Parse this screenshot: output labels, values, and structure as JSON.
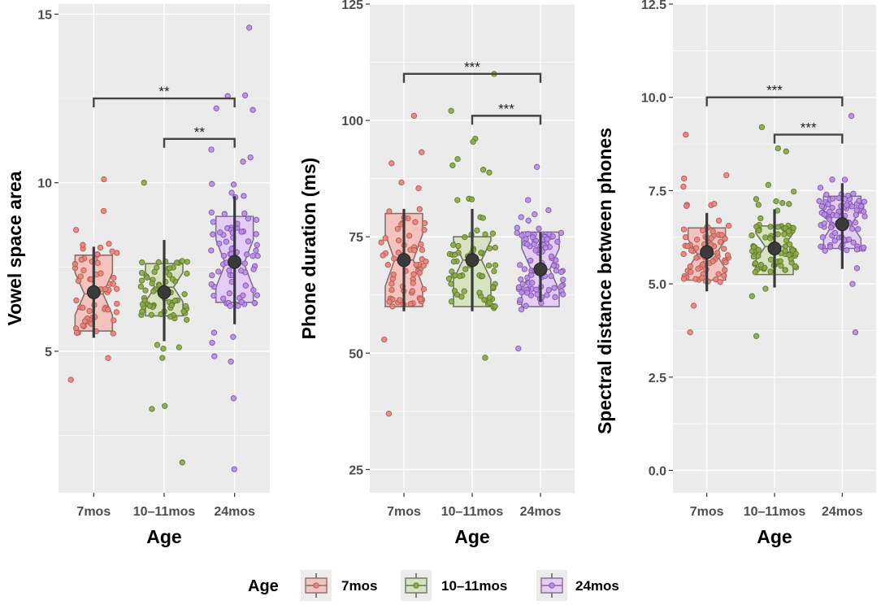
{
  "chart_data": [
    {
      "type": "box",
      "ylabel": "Vowel space area",
      "xlabel": "Age",
      "ylim": [
        0.8,
        15.3
      ],
      "yticks": [
        5,
        10,
        15
      ],
      "yticklabels": [
        "5",
        "10",
        "15"
      ],
      "categories": [
        "7mos",
        "10–11mos",
        "24mos"
      ],
      "boxes": [
        {
          "q1": 5.6,
          "median": 6.7,
          "q3": 7.85,
          "mean": 6.75,
          "err_low": 5.4,
          "err_high": 8.1,
          "min": 4.15,
          "max": 10.1,
          "n": 60
        },
        {
          "q1": 6.05,
          "median": 6.9,
          "q3": 7.6,
          "mean": 6.75,
          "err_low": 5.3,
          "err_high": 8.3,
          "min": 1.7,
          "max": 10.0,
          "n": 70
        },
        {
          "q1": 6.45,
          "median": 7.6,
          "q3": 9.0,
          "mean": 7.65,
          "err_low": 5.8,
          "err_high": 9.6,
          "min": 1.5,
          "max": 14.6,
          "n": 90
        }
      ],
      "significance": [
        {
          "from": "7mos",
          "to": "24mos",
          "y": 12.5,
          "label": "**"
        },
        {
          "from": "10–11mos",
          "to": "24mos",
          "y": 11.3,
          "label": "**"
        }
      ]
    },
    {
      "type": "box",
      "ylabel": "Phone duration (ms)",
      "xlabel": "Age",
      "ylim": [
        20,
        125
      ],
      "yticks": [
        25,
        50,
        75,
        100,
        125
      ],
      "yticklabels": [
        "25",
        "50",
        "75",
        "100",
        "125"
      ],
      "categories": [
        "7mos",
        "10–11mos",
        "24mos"
      ],
      "boxes": [
        {
          "q1": 60,
          "median": 70,
          "q3": 80,
          "mean": 70,
          "err_low": 59,
          "err_high": 81,
          "min": 37,
          "max": 101,
          "n": 70
        },
        {
          "q1": 60,
          "median": 70,
          "q3": 75,
          "mean": 70,
          "err_low": 59,
          "err_high": 81,
          "min": 49,
          "max": 110,
          "n": 70
        },
        {
          "q1": 60,
          "median": 68,
          "q3": 76,
          "mean": 68,
          "err_low": 61,
          "err_high": 76,
          "min": 51,
          "max": 90,
          "n": 90
        }
      ],
      "significance": [
        {
          "from": "7mos",
          "to": "24mos",
          "y": 110,
          "label": "***"
        },
        {
          "from": "10–11mos",
          "to": "24mos",
          "y": 101,
          "label": "***"
        }
      ]
    },
    {
      "type": "box",
      "ylabel": "Spectral distance between phones",
      "xlabel": "Age",
      "ylim": [
        -0.6,
        12.5
      ],
      "yticks": [
        0.0,
        2.5,
        5.0,
        7.5,
        10.0,
        12.5
      ],
      "yticklabels": [
        "0.0",
        "2.5",
        "5.0",
        "7.5",
        "10.0",
        "12.5"
      ],
      "categories": [
        "7mos",
        "10–11mos",
        "24mos"
      ],
      "boxes": [
        {
          "q1": 5.1,
          "median": 5.8,
          "q3": 6.5,
          "mean": 5.85,
          "err_low": 4.8,
          "err_high": 6.9,
          "min": 3.7,
          "max": 9.0,
          "n": 80
        },
        {
          "q1": 5.25,
          "median": 6.0,
          "q3": 6.55,
          "mean": 5.95,
          "err_low": 4.9,
          "err_high": 7.0,
          "min": 3.6,
          "max": 9.2,
          "n": 85
        },
        {
          "q1": 5.95,
          "median": 6.6,
          "q3": 7.35,
          "mean": 6.6,
          "err_low": 5.4,
          "err_high": 7.7,
          "min": 3.7,
          "max": 9.5,
          "n": 90
        }
      ],
      "significance": [
        {
          "from": "7mos",
          "to": "24mos",
          "y": 10.0,
          "label": "***"
        },
        {
          "from": "10–11mos",
          "to": "24mos",
          "y": 9.0,
          "label": "***"
        }
      ]
    }
  ],
  "legend": {
    "title": "Age",
    "items": [
      {
        "label": "7mos",
        "fill": "#f4c3bd",
        "stroke": "#e07b72"
      },
      {
        "label": "10–11mos",
        "fill": "#d7e2c0",
        "stroke": "#7a9a3c"
      },
      {
        "label": "24mos",
        "fill": "#e3cdf5",
        "stroke": "#b07ee0"
      }
    ]
  },
  "colors": {
    "panel_bg": "#ebebeb",
    "grid": "#ffffff",
    "box_fill": [
      "#f4c3bd",
      "#d7e2c0",
      "#e3cdf5"
    ],
    "box_stroke": [
      "#8a6f6c",
      "#6e7762",
      "#7f6f8f"
    ],
    "point_fill": [
      "#e8837a",
      "#8aa845",
      "#b88be6"
    ],
    "point_stroke": [
      "#b35a52",
      "#5f7a2b",
      "#7f55b0"
    ],
    "mean": "#3a3a3a"
  }
}
